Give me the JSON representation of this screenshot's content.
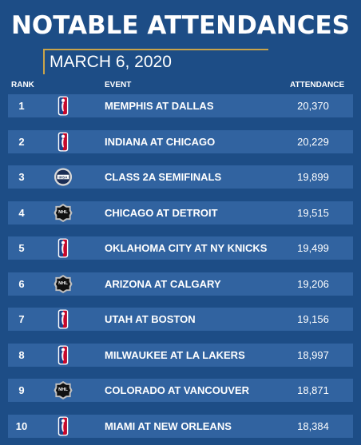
{
  "title": "NOTABLE ATTENDANCES",
  "date": "MARCH 6, 2020",
  "columns": {
    "rank": "RANK",
    "event": "EVENT",
    "attendance": "ATTENDANCE"
  },
  "colors": {
    "background": "#1d4d86",
    "row": "#3163a0",
    "accent": "#c9a44a"
  },
  "rows": [
    {
      "rank": "1",
      "league_icon": "nba-logo-icon",
      "event": "MEMPHIS AT DALLAS",
      "attendance": "20,370"
    },
    {
      "rank": "2",
      "league_icon": "nba-logo-icon",
      "event": "INDIANA AT CHICAGO",
      "attendance": "20,229"
    },
    {
      "rank": "3",
      "league_icon": "ihsa-logo-icon",
      "event": "CLASS 2A SEMIFINALS",
      "attendance": "19,899"
    },
    {
      "rank": "4",
      "league_icon": "nhl-logo-icon",
      "event": "CHICAGO AT DETROIT",
      "attendance": "19,515"
    },
    {
      "rank": "5",
      "league_icon": "nba-logo-icon",
      "event": "OKLAHOMA CITY AT NY KNICKS",
      "attendance": "19,499"
    },
    {
      "rank": "6",
      "league_icon": "nhl-logo-icon",
      "event": "ARIZONA AT CALGARY",
      "attendance": "19,206"
    },
    {
      "rank": "7",
      "league_icon": "nba-logo-icon",
      "event": "UTAH AT BOSTON",
      "attendance": "19,156"
    },
    {
      "rank": "8",
      "league_icon": "nba-logo-icon",
      "event": "MILWAUKEE AT LA LAKERS",
      "attendance": "18,997"
    },
    {
      "rank": "9",
      "league_icon": "nhl-logo-icon",
      "event": "COLORADO AT VANCOUVER",
      "attendance": "18,871"
    },
    {
      "rank": "10",
      "league_icon": "nba-logo-icon",
      "event": "MIAMI AT NEW ORLEANS",
      "attendance": "18,384"
    }
  ]
}
